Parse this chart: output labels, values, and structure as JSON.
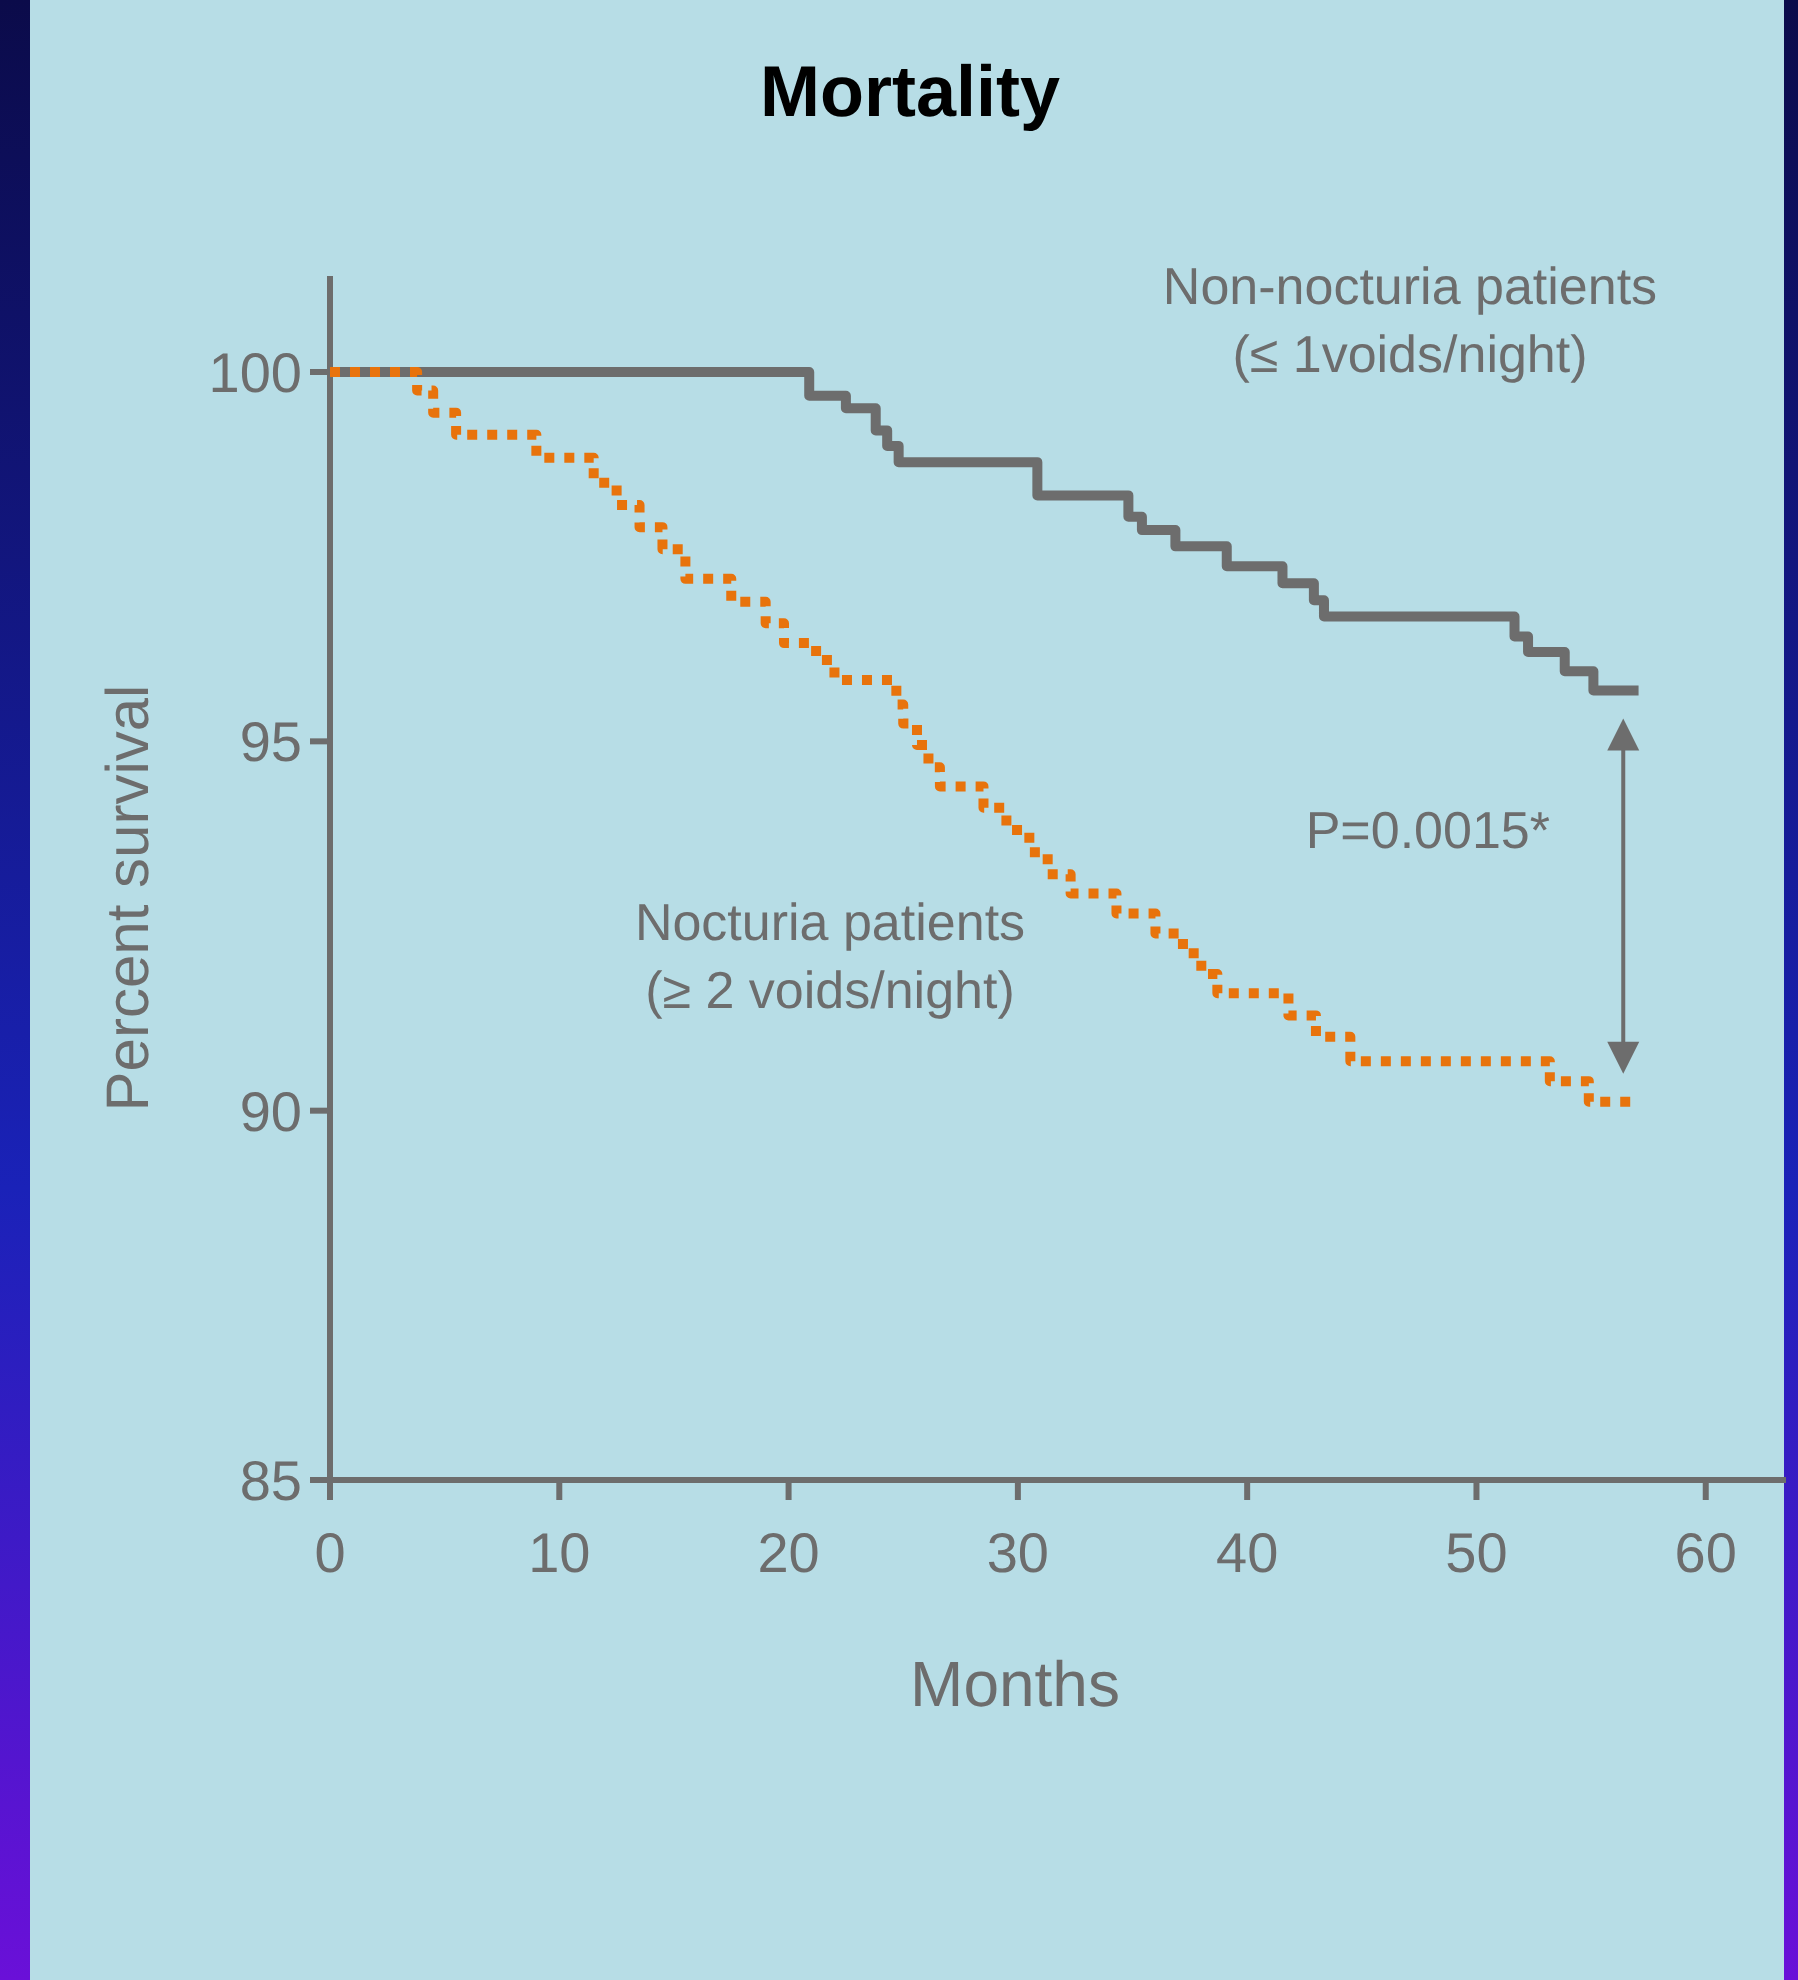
{
  "chart_data": {
    "type": "step",
    "title": "Mortality",
    "xlabel": "Months",
    "ylabel": "Percent survival",
    "xlim": [
      0,
      63.5
    ],
    "xticks": [
      0,
      10,
      20,
      30,
      40,
      50,
      60
    ],
    "ylim": [
      85,
      101.3
    ],
    "yticks": [
      85,
      90,
      95,
      100
    ],
    "grid": false,
    "series": [
      {
        "name": "Non-nocturia patients\n(≤ 1voids/night)",
        "color": "#6d6d6d",
        "line_style": "solid",
        "x": [
          0,
          20.9,
          22.5,
          23.8,
          24.3,
          24.8,
          30.85,
          34.82,
          35.41,
          36.87,
          39.11,
          41.54,
          42.91,
          43.35,
          51.66,
          52.25,
          53.85,
          55.1,
          57.07
        ],
        "values": [
          100,
          99.68,
          99.51,
          99.21,
          99.0,
          98.78,
          98.33,
          98.04,
          97.86,
          97.64,
          97.37,
          97.14,
          96.91,
          96.69,
          96.42,
          96.21,
          95.95,
          95.69,
          95.69
        ]
      },
      {
        "name": "Nocturia patients\n(≥ 2 voids/night)",
        "color": "#e8730c",
        "line_style": "dotted",
        "x": [
          0,
          3.8,
          4.5,
          5.5,
          9.0,
          11.5,
          12.5,
          13.5,
          14.5,
          15.5,
          17.5,
          19.0,
          19.8,
          21.2,
          22.0,
          24.7,
          25.0,
          25.6,
          26.1,
          26.6,
          28.5,
          29.5,
          30.5,
          31.3,
          32.3,
          34.3,
          36.0,
          37.2,
          38.0,
          38.7,
          41.8,
          43.0,
          44.5,
          53.2,
          54.9,
          57.1
        ],
        "values": [
          100,
          99.75,
          99.45,
          99.15,
          98.84,
          98.5,
          98.2,
          97.9,
          97.6,
          97.2,
          96.89,
          96.6,
          96.33,
          96.1,
          95.83,
          95.5,
          95.24,
          94.95,
          94.65,
          94.39,
          94.1,
          93.8,
          93.5,
          93.2,
          92.94,
          92.67,
          92.4,
          92.13,
          91.85,
          91.59,
          91.29,
          91.0,
          90.67,
          90.4,
          90.12,
          90.12
        ]
      }
    ],
    "annotations": [
      "P=0.0015*"
    ]
  }
}
